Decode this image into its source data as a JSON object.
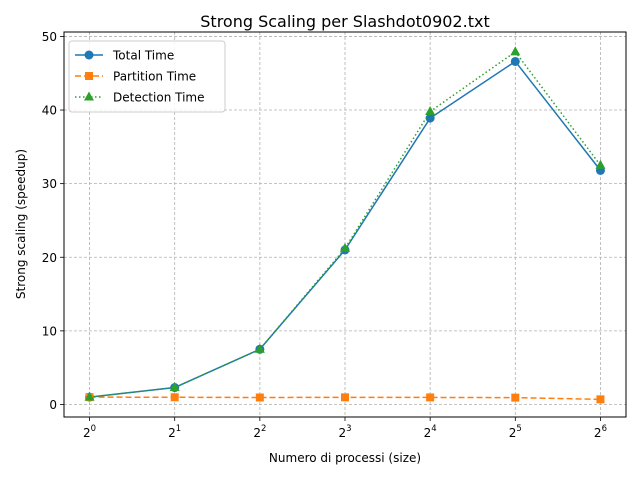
{
  "chart_data": {
    "type": "line",
    "title": "Strong Scaling per Slashdot0902.txt",
    "xlabel": "Numero di processi (size)",
    "ylabel": "Strong scaling (speedup)",
    "x": [
      1,
      2,
      4,
      8,
      16,
      32,
      64
    ],
    "x_scale": "log2",
    "x_ticks": [
      {
        "base": "2",
        "exp": "0"
      },
      {
        "base": "2",
        "exp": "1"
      },
      {
        "base": "2",
        "exp": "2"
      },
      {
        "base": "2",
        "exp": "3"
      },
      {
        "base": "2",
        "exp": "4"
      },
      {
        "base": "2",
        "exp": "5"
      },
      {
        "base": "2",
        "exp": "6"
      }
    ],
    "y_ticks": [
      "0",
      "10",
      "20",
      "30",
      "40",
      "50"
    ],
    "ylim": [
      -1.7,
      50.6
    ],
    "grid": true,
    "legend_position": "top-left",
    "series": [
      {
        "name": "Total Time",
        "color": "#1f77b4",
        "linestyle": "solid",
        "marker": "circle",
        "values": [
          1.0,
          2.3,
          7.5,
          21.0,
          38.9,
          46.6,
          31.8
        ]
      },
      {
        "name": "Partition Time",
        "color": "#ff7f0e",
        "linestyle": "dashed",
        "marker": "square",
        "values": [
          1.0,
          0.98,
          0.95,
          0.97,
          0.96,
          0.93,
          0.7
        ]
      },
      {
        "name": "Detection Time",
        "color": "#2ca02c",
        "linestyle": "dotted",
        "marker": "triangle",
        "values": [
          1.0,
          2.3,
          7.5,
          21.2,
          39.8,
          47.9,
          32.5
        ]
      }
    ]
  }
}
